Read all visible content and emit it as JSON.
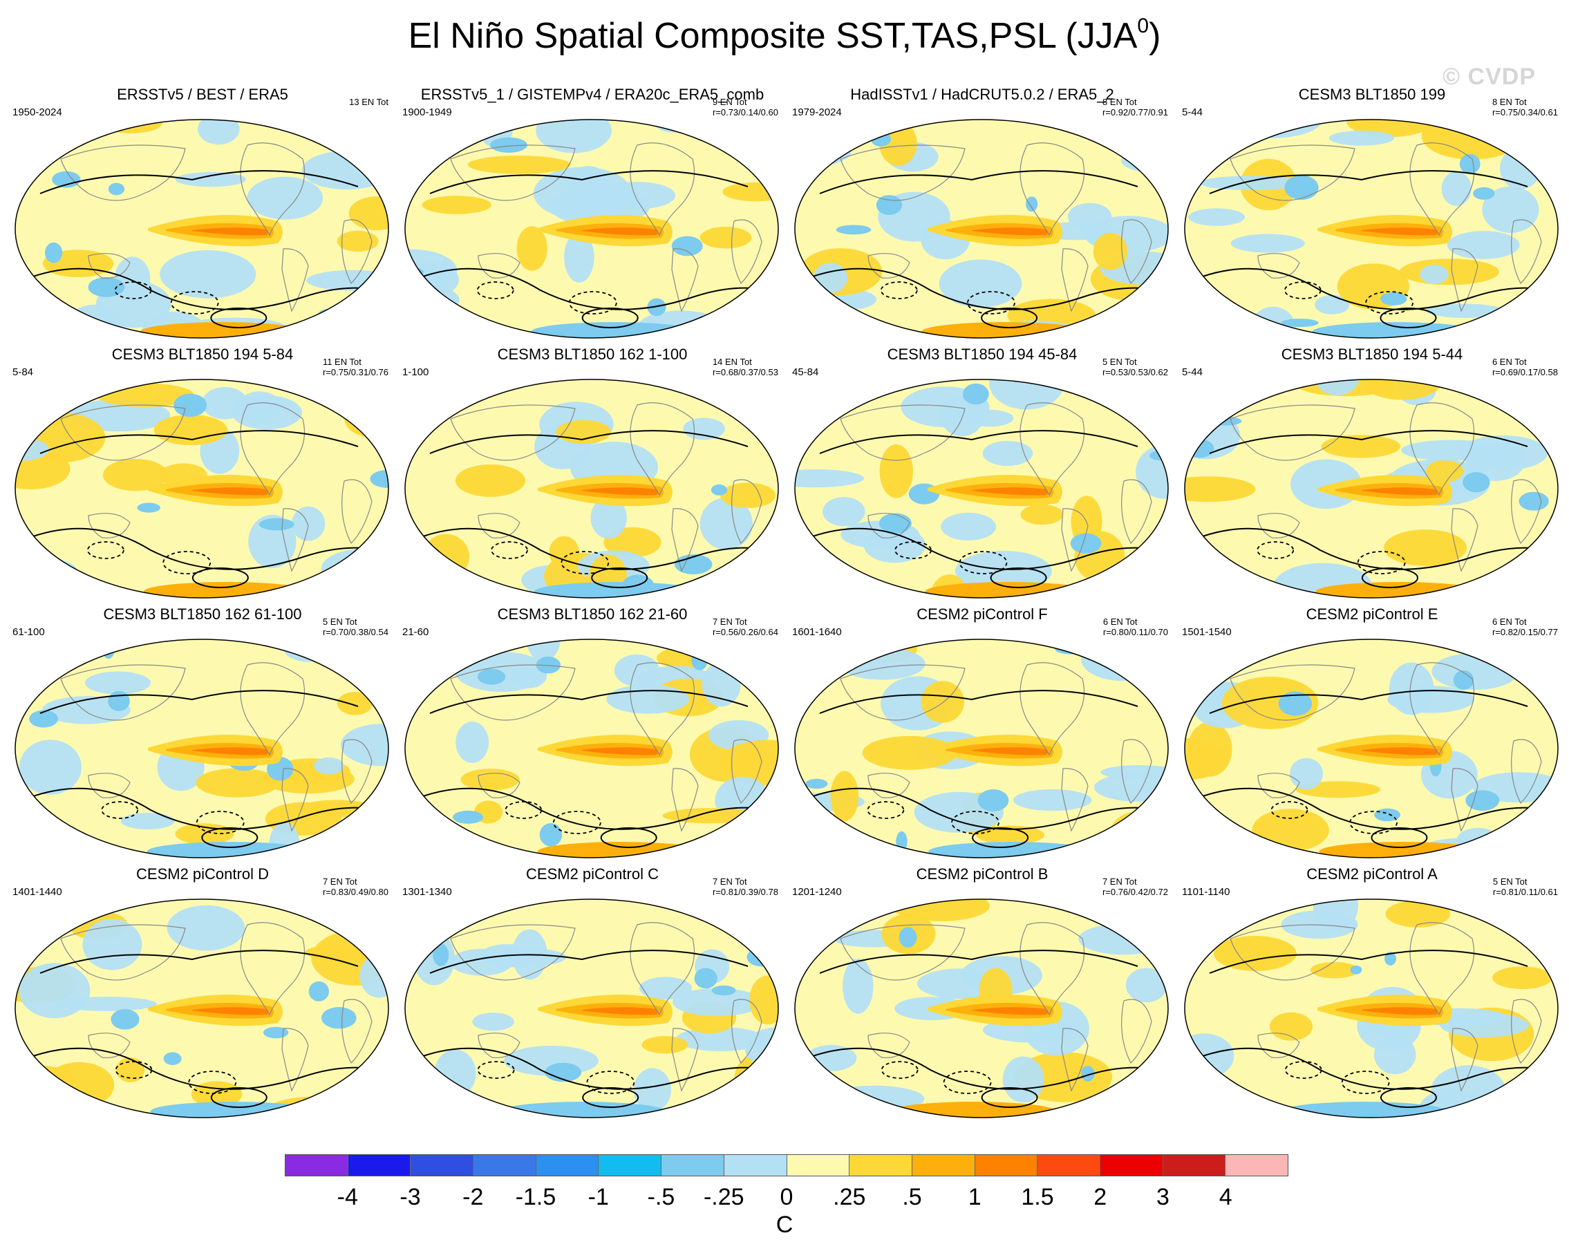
{
  "title": {
    "text": "El Niño Spatial Composite SST,TAS,PSL (JJA",
    "sup": "0",
    "suffix": ")"
  },
  "watermark": "© CVDP",
  "panels": [
    {
      "title": "ERSSTv5 / BEST / ERA5",
      "years": "1950-2024",
      "stats1": "13 EN Tot",
      "stats2": ""
    },
    {
      "title": "ERSSTv5_1 / GISTEMPv4 / ERA20c_ERA5_comb",
      "years": "1900-1949",
      "stats1": "9 EN Tot",
      "stats2": "r=0.73/0.14/0.60"
    },
    {
      "title": "HadISSTv1 / HadCRUT5.0.2 / ERA5_2",
      "years": "1979-2024",
      "stats1": "8 EN Tot",
      "stats2": "r=0.92/0.77/0.91"
    },
    {
      "title": "CESM3 BLT1850 199",
      "years": "5-44",
      "stats1": "8 EN Tot",
      "stats2": "r=0.75/0.34/0.61"
    },
    {
      "title": "CESM3 BLT1850 194 5-84",
      "years": "5-84",
      "stats1": "11 EN Tot",
      "stats2": "r=0.75/0.31/0.76"
    },
    {
      "title": "CESM3 BLT1850 162 1-100",
      "years": "1-100",
      "stats1": "14 EN Tot",
      "stats2": "r=0.68/0.37/0.53"
    },
    {
      "title": "CESM3 BLT1850 194 45-84",
      "years": "45-84",
      "stats1": "5 EN Tot",
      "stats2": "r=0.53/0.53/0.62"
    },
    {
      "title": "CESM3 BLT1850 194 5-44",
      "years": "5-44",
      "stats1": "6 EN Tot",
      "stats2": "r=0.69/0.17/0.58"
    },
    {
      "title": "CESM3 BLT1850 162 61-100",
      "years": "61-100",
      "stats1": "5 EN Tot",
      "stats2": "r=0.70/0.38/0.54"
    },
    {
      "title": "CESM3 BLT1850 162 21-60",
      "years": "21-60",
      "stats1": "7 EN Tot",
      "stats2": "r=0.56/0.26/0.64"
    },
    {
      "title": "CESM2 piControl F",
      "years": "1601-1640",
      "stats1": "6 EN Tot",
      "stats2": "r=0.80/0.11/0.70"
    },
    {
      "title": "CESM2 piControl E",
      "years": "1501-1540",
      "stats1": "6 EN Tot",
      "stats2": "r=0.82/0.15/0.77"
    },
    {
      "title": "CESM2 piControl D",
      "years": "1401-1440",
      "stats1": "7 EN Tot",
      "stats2": "r=0.83/0.49/0.80"
    },
    {
      "title": "CESM2 piControl C",
      "years": "1301-1340",
      "stats1": "7 EN Tot",
      "stats2": "r=0.81/0.39/0.78"
    },
    {
      "title": "CESM2 piControl B",
      "years": "1201-1240",
      "stats1": "7 EN Tot",
      "stats2": "r=0.76/0.42/0.72"
    },
    {
      "title": "CESM2 piControl A",
      "years": "1101-1140",
      "stats1": "5 EN Tot",
      "stats2": "r=0.81/0.11/0.61"
    }
  ],
  "colorbar": {
    "colors": [
      "#8a2be2",
      "#1a1aee",
      "#2f4fe0",
      "#3a78e8",
      "#2b90f0",
      "#12bcf0",
      "#7dcbee",
      "#b4e0f4",
      "#fdfab0",
      "#fdd836",
      "#fdb00c",
      "#fd8200",
      "#fd4a10",
      "#ec0000",
      "#cc1c1c",
      "#fcb6b6"
    ],
    "ticks": [
      "-4",
      "-3",
      "-2",
      "-1.5",
      "-1",
      "-.5",
      "-.25",
      "0",
      ".25",
      ".5",
      "1",
      "1.5",
      "2",
      "3",
      "4"
    ],
    "units": "C"
  }
}
